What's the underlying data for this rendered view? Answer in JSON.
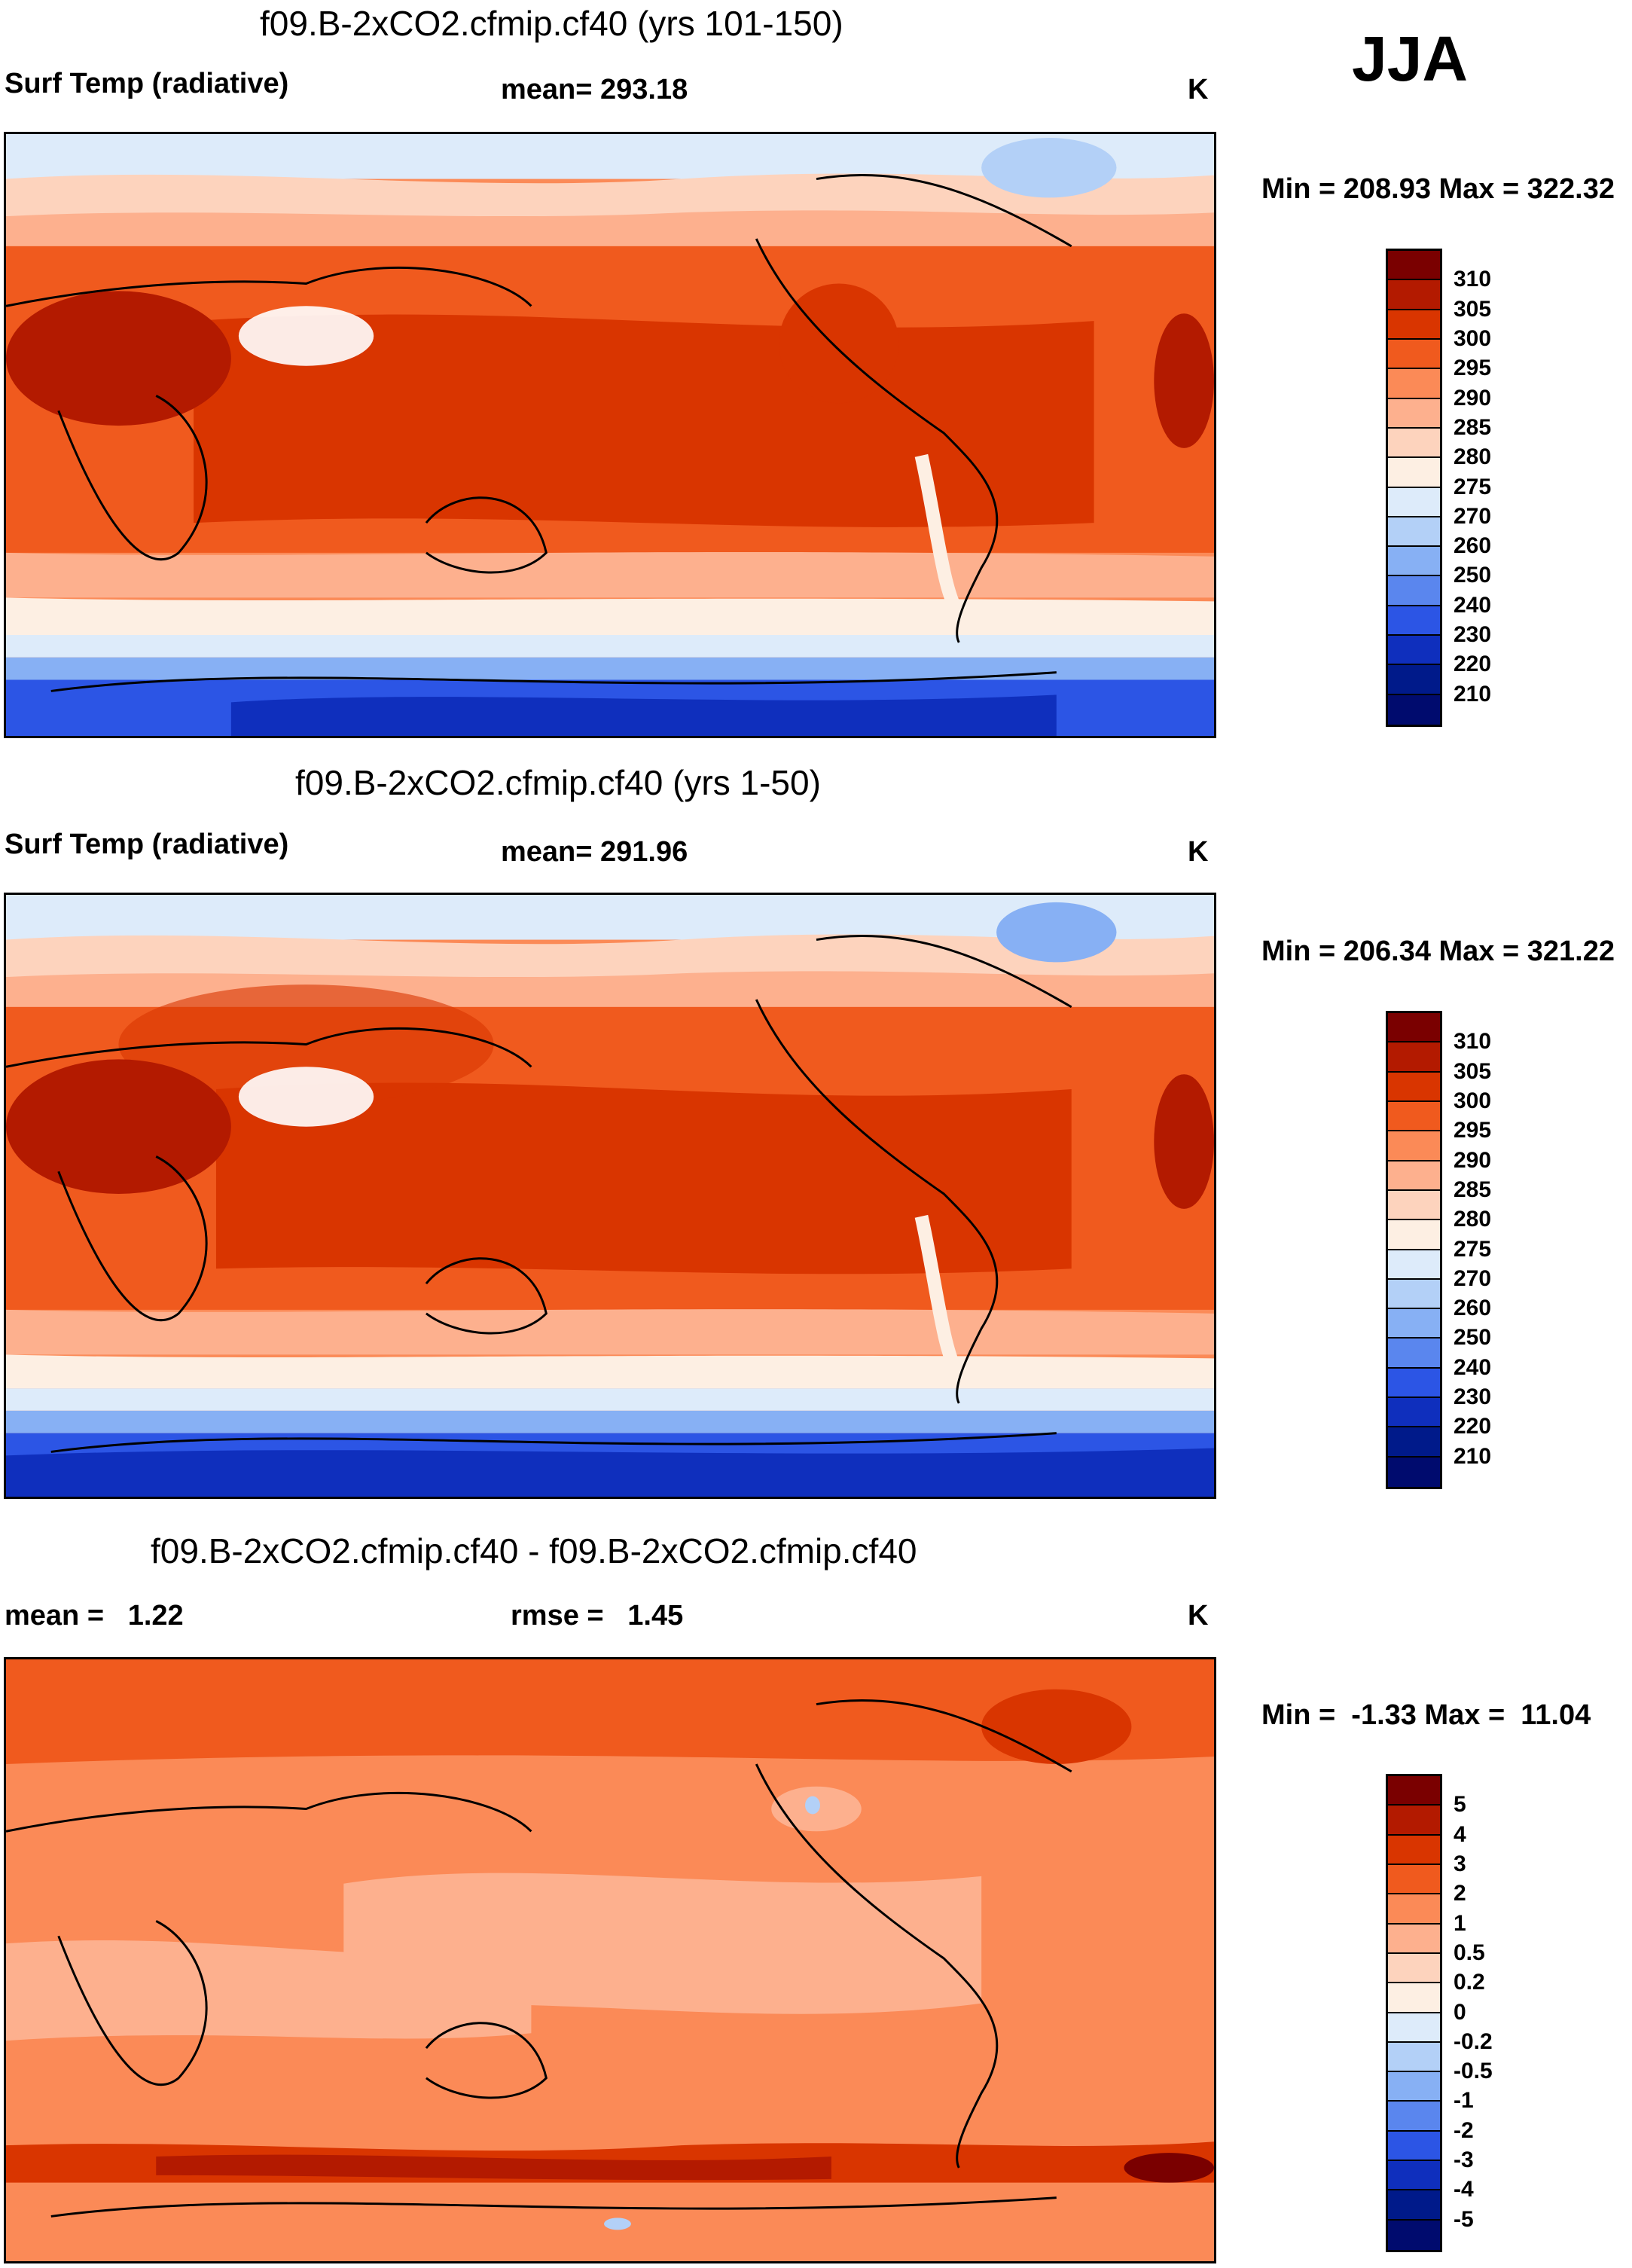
{
  "season": "JJA",
  "panels": [
    {
      "id": "p1",
      "title": "f09.B-2xCO2.cfmip.cf40 (yrs 101-150)",
      "variable": "Surf Temp (radiative)",
      "stat1": "mean= 293.18",
      "stat2": "",
      "units": "K",
      "minmax": "Min = 208.93 Max = 322.32",
      "colorbar": {
        "ticks": [
          "310",
          "305",
          "300",
          "295",
          "290",
          "285",
          "280",
          "275",
          "270",
          "260",
          "250",
          "240",
          "230",
          "220",
          "210"
        ],
        "colors": [
          "#7a0000",
          "#b31a00",
          "#d93500",
          "#f05a1e",
          "#fb8a57",
          "#fdb08e",
          "#fdd3bd",
          "#fdefe3",
          "#ddebfa",
          "#b3d0f7",
          "#87b0f4",
          "#5a86ee",
          "#2c55e5",
          "#0f2fbd",
          "#001a8a",
          "#000b6e"
        ]
      },
      "map_kind": "abs"
    },
    {
      "id": "p2",
      "title": "f09.B-2xCO2.cfmip.cf40 (yrs 1-50)",
      "variable": "Surf Temp (radiative)",
      "stat1": "mean= 291.96",
      "stat2": "",
      "units": "K",
      "minmax": "Min = 206.34 Max = 321.22",
      "colorbar": {
        "ticks": [
          "310",
          "305",
          "300",
          "295",
          "290",
          "285",
          "280",
          "275",
          "270",
          "260",
          "250",
          "240",
          "230",
          "220",
          "210"
        ],
        "colors": [
          "#7a0000",
          "#b31a00",
          "#d93500",
          "#f05a1e",
          "#fb8a57",
          "#fdb08e",
          "#fdd3bd",
          "#fdefe3",
          "#ddebfa",
          "#b3d0f7",
          "#87b0f4",
          "#5a86ee",
          "#2c55e5",
          "#0f2fbd",
          "#001a8a",
          "#000b6e"
        ]
      },
      "map_kind": "abs"
    },
    {
      "id": "p3",
      "title": "f09.B-2xCO2.cfmip.cf40 - f09.B-2xCO2.cfmip.cf40",
      "variable": "mean =   1.22",
      "stat1": "rmse =   1.45",
      "stat2": "",
      "units": "K",
      "minmax": "Min =  -1.33 Max =  11.04",
      "colorbar": {
        "ticks": [
          "5",
          "4",
          "3",
          "2",
          "1",
          "0.5",
          "0.2",
          "0",
          "-0.2",
          "-0.5",
          "-1",
          "-2",
          "-3",
          "-4",
          "-5"
        ],
        "colors": [
          "#7a0000",
          "#b31a00",
          "#d93500",
          "#f05a1e",
          "#fb8a57",
          "#fdb08e",
          "#fdd3bd",
          "#fdefe3",
          "#ddebfa",
          "#b3d0f7",
          "#87b0f4",
          "#5a86ee",
          "#2c55e5",
          "#0f2fbd",
          "#001a8a",
          "#000b6e"
        ]
      },
      "map_kind": "diff"
    }
  ]
}
